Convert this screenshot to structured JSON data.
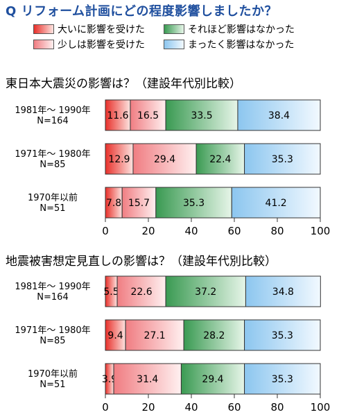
{
  "question": "Q リフォーム計画にどの程度影響しましたか？",
  "legend": [
    {
      "label": "大いに影響を受けた",
      "color": "#e8302a",
      "light": "#fde3e0"
    },
    {
      "label": "少しは影響を受けた",
      "color": "#f07d82",
      "light": "#fff0f0"
    },
    {
      "label": "それほど影響はなかった",
      "color": "#3a9a52",
      "light": "#e6f5e8"
    },
    {
      "label": "まったく影響はなかった",
      "color": "#8cc6ef",
      "light": "#f2f9ff"
    }
  ],
  "chart_data": [
    {
      "type": "bar",
      "orientation": "horizontal",
      "stacked": true,
      "title": "東日本大震災の影響は？（建設年代別比較）",
      "categories": [
        "1981年～ 1990年\nN=164",
        "1971年～ 1980年\nN=85",
        "1970年以前\nN=51"
      ],
      "series": [
        {
          "name": "大いに影響を受けた",
          "values": [
            11.6,
            12.9,
            7.8
          ]
        },
        {
          "name": "少しは影響を受けた",
          "values": [
            16.5,
            29.4,
            15.7
          ]
        },
        {
          "name": "それほど影響はなかった",
          "values": [
            33.5,
            22.4,
            35.3
          ]
        },
        {
          "name": "まったく影響はなかった",
          "values": [
            38.4,
            35.3,
            41.2
          ]
        }
      ],
      "xlim": [
        0,
        100
      ],
      "xticks": [
        "0",
        "20",
        "40",
        "60",
        "80",
        "100"
      ]
    },
    {
      "type": "bar",
      "orientation": "horizontal",
      "stacked": true,
      "title": "地震被害想定見直しの影響は？（建設年代別比較）",
      "categories": [
        "1981年～ 1990年\nN=164",
        "1971年～ 1980年\nN=85",
        "1970年以前\nN=51"
      ],
      "series": [
        {
          "name": "大いに影響を受けた",
          "values": [
            5.5,
            9.4,
            3.9
          ]
        },
        {
          "name": "少しは影響を受けた",
          "values": [
            22.6,
            27.1,
            31.4
          ]
        },
        {
          "name": "それほど影響はなかった",
          "values": [
            37.2,
            28.2,
            29.4
          ]
        },
        {
          "name": "まったく影響はなかった",
          "values": [
            34.8,
            35.3,
            35.3
          ]
        }
      ],
      "xlim": [
        0,
        100
      ],
      "xticks": [
        "0",
        "20",
        "40",
        "60",
        "80",
        "100"
      ]
    }
  ]
}
